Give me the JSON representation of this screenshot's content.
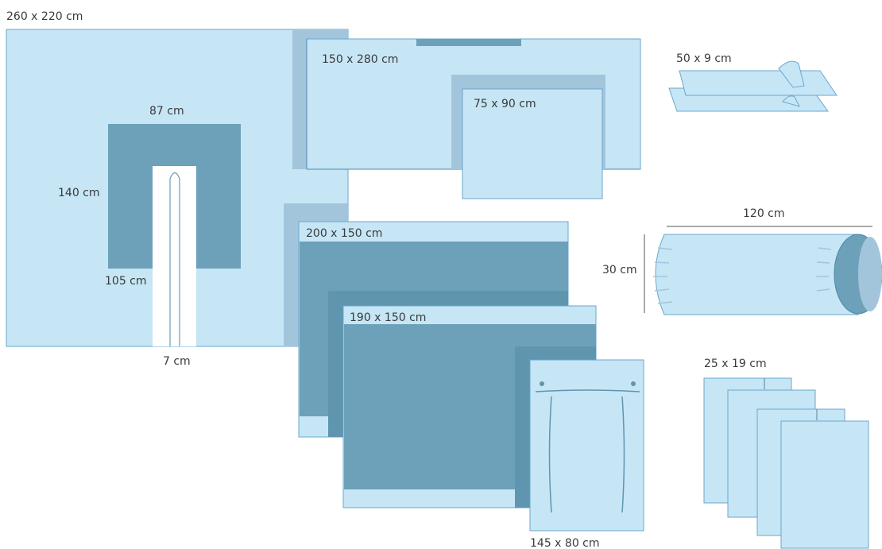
{
  "colors": {
    "light_fill": "#c6e6f6",
    "mid_fill": "#a3c5dc",
    "dark_fill": "#6ca1b9",
    "outline": "#6aa7cc"
  },
  "items": {
    "u_drape": {
      "size": "260 x 220 cm",
      "top_width": "87 cm",
      "height": "140 cm",
      "slit_length": "105 cm",
      "slit_width": "7 cm"
    },
    "sheet_150x280": {
      "size": "150 x 280 cm"
    },
    "sheet_75x90": {
      "size": "75 x 90 cm"
    },
    "tape_50x9": {
      "size": "50 x 9 cm"
    },
    "sheet_200x150": {
      "size": "200 x 150 cm"
    },
    "sheet_190x150": {
      "size": "190 x 150 cm"
    },
    "sheet_145x80": {
      "size": "145 x 80 cm"
    },
    "roll": {
      "length": "120 cm",
      "diameter": "30 cm"
    },
    "towels_25x19": {
      "size": "25 x 19 cm"
    }
  }
}
